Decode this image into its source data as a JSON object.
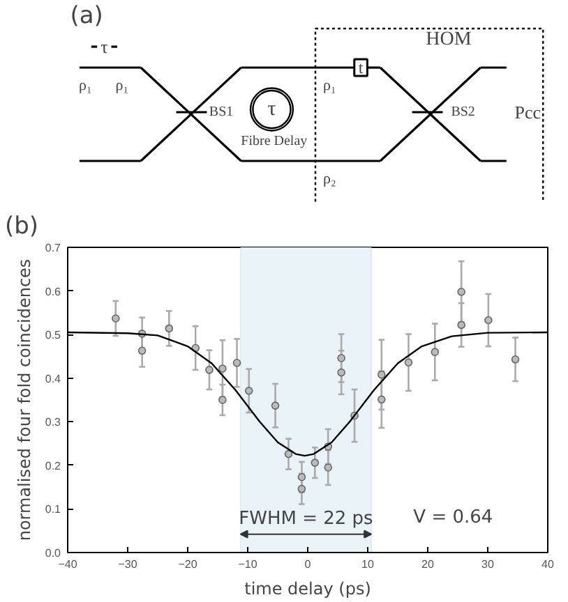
{
  "chart_data": [
    {
      "type": "other",
      "title": "(a)",
      "annotations": [
        "τ",
        "ρ₁",
        "ρ₁",
        "BS1",
        "τ",
        "Fibre Delay",
        "ρ₁",
        "t",
        "HOM",
        "ρ₂",
        "BS2",
        "Pcc"
      ]
    },
    {
      "type": "scatter",
      "title": "(b)",
      "xlabel": "time delay (ps)",
      "ylabel": "normalised four fold coincidences",
      "xlim": [
        -40,
        40
      ],
      "xticks": [
        {
          "value": -40,
          "label": "−40"
        },
        {
          "value": -30,
          "label": "−30"
        },
        {
          "value": -20,
          "label": "−20"
        },
        {
          "value": -10,
          "label": "−10"
        },
        0,
        10,
        20,
        30,
        40
      ],
      "ylim": [
        0,
        0.7
      ],
      "yticks": [
        {
          "value": 0,
          "label": "0.0"
        },
        0.1,
        0.2,
        0.3,
        0.4,
        0.5,
        0.6,
        0.7
      ],
      "grid": false,
      "marker": "circle",
      "bands": [
        {
          "axis": "x",
          "from": -11.2,
          "to": 10.6,
          "label": "FWHM = 22 ps",
          "color": "#eaf4f8"
        }
      ],
      "annotations": [
        "V = 0.64"
      ],
      "series": [
        {
          "type": "scatter",
          "color": "#bbbbbb",
          "x": [
            -32.0,
            -27.6,
            -27.6,
            -23.1,
            -18.7,
            -16.4,
            -14.2,
            -14.2,
            -11.8,
            -9.8,
            -5.4,
            -3.2,
            -1.0,
            -1.0,
            1.2,
            3.4,
            3.4,
            5.6,
            5.6,
            7.8,
            12.3,
            12.3,
            16.8,
            21.2,
            25.6,
            25.6,
            30.1,
            34.6
          ],
          "values": [
            0.537,
            0.502,
            0.463,
            0.514,
            0.469,
            0.419,
            0.422,
            0.35,
            0.435,
            0.371,
            0.337,
            0.226,
            0.173,
            0.146,
            0.206,
            0.243,
            0.195,
            0.446,
            0.413,
            0.314,
            0.408,
            0.351,
            0.436,
            0.46,
            0.598,
            0.522,
            0.533,
            0.443
          ],
          "errors": [
            0.04,
            0.037,
            0.037,
            0.04,
            0.05,
            0.045,
            0.065,
            0.035,
            0.055,
            0.05,
            0.05,
            0.035,
            0.035,
            0.035,
            0.035,
            0.04,
            0.04,
            0.055,
            0.05,
            0.06,
            0.08,
            0.065,
            0.065,
            0.065,
            0.07,
            0.05,
            0.06,
            0.05
          ]
        },
        {
          "type": "line",
          "color": "#000000",
          "line_style": "solid",
          "marker": "none",
          "x": [
            -40,
            -30,
            -25,
            -20,
            -16,
            -12,
            -8,
            -5,
            -2,
            -0.5,
            1,
            4,
            7,
            11,
            15,
            19,
            24,
            30,
            40
          ],
          "values": [
            0.505,
            0.503,
            0.498,
            0.473,
            0.434,
            0.372,
            0.3,
            0.253,
            0.226,
            0.222,
            0.226,
            0.253,
            0.3,
            0.372,
            0.434,
            0.473,
            0.496,
            0.504,
            0.505
          ]
        }
      ]
    }
  ]
}
